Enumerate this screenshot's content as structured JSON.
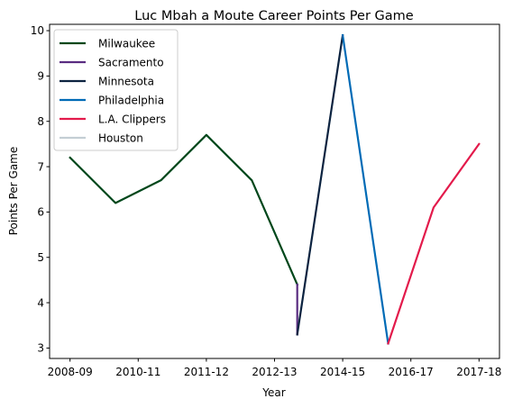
{
  "chart_data": {
    "type": "line",
    "title": "Luc Mbah a Moute Career Points Per Game",
    "xlabel": "Year",
    "ylabel": "Points Per Game",
    "x_tick_labels": [
      "2008-09",
      "2010-11",
      "2011-12",
      "2012-13",
      "2014-15",
      "2016-17",
      "2017-18"
    ],
    "y_ticks": [
      3,
      4,
      5,
      6,
      7,
      8,
      9,
      10
    ],
    "ylim": [
      2.77,
      10.14
    ],
    "grid": false,
    "legend_position": "top-left",
    "series": [
      {
        "name": "Milwaukee",
        "color": "#00471b",
        "points": [
          [
            0,
            7.2
          ],
          [
            1,
            6.2
          ],
          [
            2,
            6.7
          ],
          [
            3,
            7.7
          ],
          [
            4,
            6.7
          ],
          [
            5,
            4.4
          ]
        ]
      },
      {
        "name": "Sacramento",
        "color": "#5a2d81",
        "points": [
          [
            5,
            4.4
          ],
          [
            5,
            3.3
          ]
        ]
      },
      {
        "name": "Minnesota",
        "color": "#0c2340",
        "points": [
          [
            5,
            3.3
          ],
          [
            6,
            9.9
          ]
        ]
      },
      {
        "name": "Philadelphia",
        "color": "#006bb6",
        "points": [
          [
            6,
            9.9
          ],
          [
            7,
            3.1
          ]
        ]
      },
      {
        "name": "L.A. Clippers",
        "color": "#e31a4b",
        "points": [
          [
            7,
            3.1
          ],
          [
            8,
            6.1
          ],
          [
            9,
            7.5
          ]
        ]
      },
      {
        "name": "Houston",
        "color": "#c4ced4",
        "points": []
      }
    ]
  }
}
